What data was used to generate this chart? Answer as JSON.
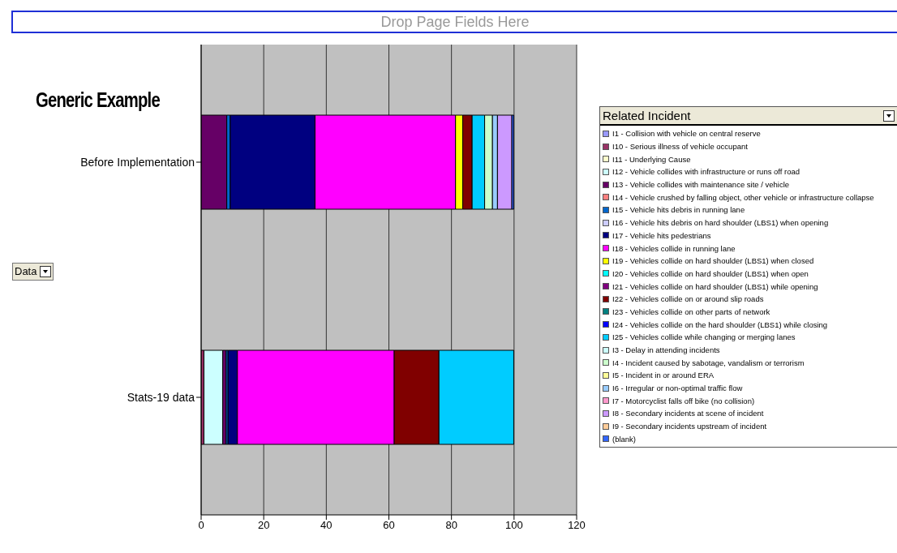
{
  "chart_data": {
    "type": "bar",
    "orientation": "horizontal",
    "stacked": true,
    "title": "Generic Example",
    "legend_title": "Related Incident",
    "annotations": [
      "Drop Page Fields Here",
      "Data"
    ],
    "categories": [
      "Before Implementation",
      "Stats-19 data"
    ],
    "xlim": [
      0,
      120
    ],
    "xticks": [
      0,
      20,
      40,
      60,
      80,
      100,
      120
    ],
    "grid": "x",
    "legend": "right",
    "series": [
      {
        "name": "I1 - Collision with vehicle on central reserve",
        "color": "#9999ff",
        "values": [
          0,
          0
        ]
      },
      {
        "name": "I10 - Serious illness of vehicle occupant",
        "color": "#993366",
        "values": [
          0,
          0.9
        ]
      },
      {
        "name": "I11 - Underlying Cause",
        "color": "#ffffcc",
        "values": [
          0,
          0
        ]
      },
      {
        "name": "I12 - Vehicle collides with infrastructure or runs off road",
        "color": "#ccffff",
        "values": [
          0,
          6.0
        ]
      },
      {
        "name": "I13 - Vehicle collides with maintenance site / vehicle",
        "color": "#660066",
        "values": [
          8.2,
          1.1
        ]
      },
      {
        "name": "I14 - Vehicle crushed by falling object, other vehicle or infrastructure collapse",
        "color": "#ff8080",
        "values": [
          0,
          0
        ]
      },
      {
        "name": "I15 - Vehicle hits debris in running lane",
        "color": "#0066cc",
        "values": [
          1.1,
          0.6
        ]
      },
      {
        "name": "I16 - Vehicle hits debris on hard shoulder (LBS1) when opening",
        "color": "#ccccff",
        "values": [
          0,
          0
        ]
      },
      {
        "name": "I17 - Vehicle hits pedestrians",
        "color": "#000080",
        "values": [
          27.1,
          3.0
        ]
      },
      {
        "name": "I18 - Vehicles collide in running lane",
        "color": "#ff00ff",
        "values": [
          44.9,
          50.1
        ]
      },
      {
        "name": "I19 - Vehicles collide on hard shoulder (LBS1) when closed",
        "color": "#ffff00",
        "values": [
          2.3,
          0
        ]
      },
      {
        "name": "I20 - Vehicles collide on hard shoulder (LBS1) when open",
        "color": "#00ffff",
        "values": [
          0,
          0
        ]
      },
      {
        "name": "I21 - Vehicles collide on hard shoulder (LBS1) while opening",
        "color": "#800080",
        "values": [
          0,
          0
        ]
      },
      {
        "name": "I22 - Vehicles collide on or around slip roads",
        "color": "#800000",
        "values": [
          3.0,
          14.3
        ]
      },
      {
        "name": "I23 - Vehicles collide on other parts of network",
        "color": "#008080",
        "values": [
          0,
          0
        ]
      },
      {
        "name": "I24 - Vehicles collide on the hard shoulder (LBS1) while closing",
        "color": "#0000ff",
        "values": [
          0,
          0
        ]
      },
      {
        "name": "I25 - Vehicles collide while changing or merging lanes",
        "color": "#00ccff",
        "values": [
          4.0,
          23.9
        ]
      },
      {
        "name": "I3 - Delay in attending incidents",
        "color": "#ccffff",
        "values": [
          0,
          0
        ]
      },
      {
        "name": "I4 - Incident caused by sabotage, vandalism or terrorism",
        "color": "#ccffcc",
        "values": [
          2.5,
          0
        ]
      },
      {
        "name": "I5 - Incident in or around ERA",
        "color": "#ffff99",
        "values": [
          0,
          0
        ]
      },
      {
        "name": "I6 - Irregular or non-optimal traffic flow",
        "color": "#99ccff",
        "values": [
          1.6,
          0
        ]
      },
      {
        "name": "I7 - Motorcyclist falls off bike (no collision)",
        "color": "#ff99cc",
        "values": [
          0,
          0
        ]
      },
      {
        "name": "I8 - Secondary incidents at scene of incident",
        "color": "#cc99ff",
        "values": [
          4.6,
          0
        ]
      },
      {
        "name": "I9 - Secondary incidents upstream of incident",
        "color": "#ffcc99",
        "values": [
          0,
          0
        ]
      },
      {
        "name": "(blank)",
        "color": "#3366ff",
        "values": [
          0.6,
          0
        ]
      }
    ]
  }
}
